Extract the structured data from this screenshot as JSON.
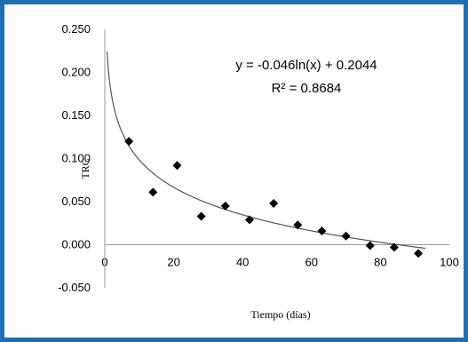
{
  "chart_data": {
    "type": "scatter",
    "title": "",
    "xlabel": "Tiempo (días)",
    "ylabel": "TRC",
    "xlim": [
      0,
      100
    ],
    "ylim": [
      -0.05,
      0.25
    ],
    "x_ticks": [
      "0",
      "20",
      "40",
      "60",
      "80",
      "100"
    ],
    "y_ticks": [
      "-0.050",
      "0.000",
      "0.050",
      "0.100",
      "0.150",
      "0.200",
      "0.250"
    ],
    "grid": false,
    "legend": "none",
    "series": [
      {
        "x": [
          7,
          14,
          21,
          28,
          35,
          42,
          49,
          56,
          63,
          70,
          77,
          84,
          91
        ],
        "y": [
          0.12,
          0.061,
          0.092,
          0.033,
          0.045,
          0.029,
          0.048,
          0.023,
          0.016,
          0.01,
          -0.001,
          -0.003,
          -0.01
        ],
        "marker": "diamond",
        "color": "#000000"
      }
    ],
    "trendline": {
      "type": "logarithmic",
      "a": -0.046,
      "b": 0.2044,
      "color": "#555555"
    },
    "annotations": {
      "equation": "y = -0.046ln(x) + 0.2044",
      "r2": "R² = 0.8684"
    }
  }
}
